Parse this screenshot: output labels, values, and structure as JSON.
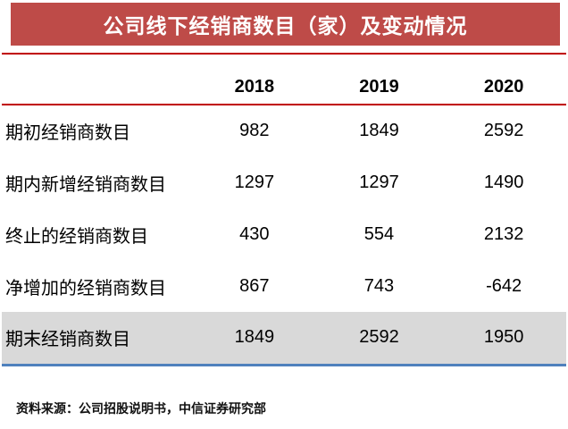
{
  "title": "公司线下经销商数目（家）及变动情况",
  "source_note": "资料来源：公司招股说明书，中信证券研究部",
  "colors": {
    "title_bar_bg": "#BE4B48",
    "title_text": "#FFFFFF",
    "red_rule": "#C00000",
    "highlight_row_bg": "#D9D9D9",
    "blue_rule": "#4F81BD",
    "body_text": "#000000"
  },
  "chart_data": {
    "type": "table",
    "title": "公司线下经销商数目（家）及变动情况",
    "categories": [
      "2018",
      "2019",
      "2020"
    ],
    "series": [
      {
        "name": "期初经销商数目",
        "values": [
          982,
          1849,
          2592
        ]
      },
      {
        "name": "期内新增经销商数目",
        "values": [
          1297,
          1297,
          1490
        ]
      },
      {
        "name": "终止的经销商数目",
        "values": [
          430,
          554,
          2132
        ]
      },
      {
        "name": "净增加的经销商数目",
        "values": [
          867,
          743,
          -642
        ]
      },
      {
        "name": "期末经销商数目",
        "values": [
          1849,
          2592,
          1950
        ]
      }
    ],
    "highlight_row": "期末经销商数目",
    "source": "资料来源：公司招股说明书，中信证券研究部",
    "layout": {
      "grid": "none",
      "header_rule_color": "#C00000",
      "last_row_highlighted": true
    }
  }
}
